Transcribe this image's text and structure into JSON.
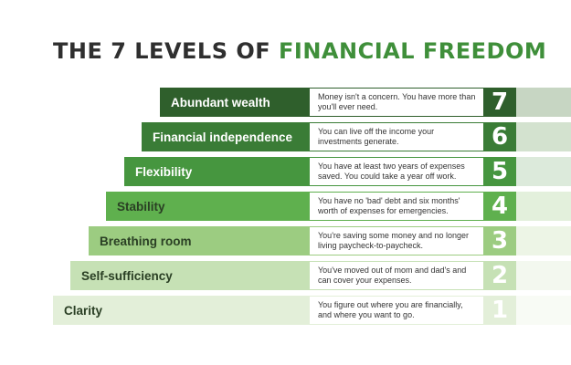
{
  "title": {
    "part1": "THE 7 LEVELS OF ",
    "part2": "FINANCIAL FREEDOM"
  },
  "colors": {
    "level7": "#2f5f2c",
    "level6": "#3a7c36",
    "level5": "#46963f",
    "level4": "#5fb04e",
    "level3": "#9ccc81",
    "level2": "#c6e1b5",
    "level1": "#e3efd9"
  },
  "levels": [
    {
      "number": "7",
      "name": "Abundant wealth",
      "description": "Money isn't a concern. You have more than you'll ever need."
    },
    {
      "number": "6",
      "name": "Financial independence",
      "description": "You can live off the income your investments generate."
    },
    {
      "number": "5",
      "name": "Flexibility",
      "description": "You have at least two years of expenses saved. You could take a year off work."
    },
    {
      "number": "4",
      "name": "Stability",
      "description": "You have no 'bad' debt and six months' worth of expenses for emergencies."
    },
    {
      "number": "3",
      "name": "Breathing room",
      "description": "You're saving some money and no longer living paycheck-to-paycheck."
    },
    {
      "number": "2",
      "name": "Self-sufficiency",
      "description": "You've moved out of mom and dad's and can cover your expenses."
    },
    {
      "number": "1",
      "name": "Clarity",
      "description": "You figure out where you are financially, and where you want to go."
    }
  ]
}
